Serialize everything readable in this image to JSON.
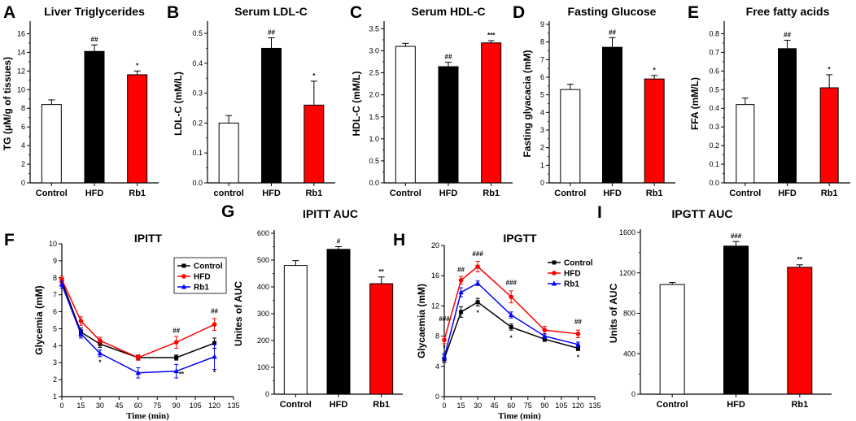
{
  "chart_data": [
    {
      "panel": "A",
      "type": "bar",
      "title": "Liver Triglycerides",
      "ylabel": "TG (μM/g of tissues)",
      "xlabel": "",
      "ylim": [
        0,
        17
      ],
      "yticks": [
        0,
        2,
        4,
        6,
        8,
        10,
        12,
        14,
        16
      ],
      "categories": [
        "Control",
        "HFD",
        "Rb1"
      ],
      "values": [
        8.4,
        14.1,
        11.6
      ],
      "errors": [
        0.5,
        0.7,
        0.4
      ],
      "colors": [
        "#ffffff",
        "#000000",
        "#ff0000"
      ],
      "annotations": [
        "",
        "##",
        "*"
      ]
    },
    {
      "panel": "B",
      "type": "bar",
      "title": "Serum LDL-C",
      "ylabel": "LDL-C (mM/L)",
      "xlabel": "",
      "ylim": [
        0,
        0.53
      ],
      "yticks": [
        0.0,
        0.1,
        0.2,
        0.3,
        0.4,
        0.5
      ],
      "categories": [
        "control",
        "HFD",
        "Rb1"
      ],
      "values": [
        0.2,
        0.45,
        0.26
      ],
      "errors": [
        0.025,
        0.035,
        0.08
      ],
      "colors": [
        "#ffffff",
        "#000000",
        "#ff0000"
      ],
      "annotations": [
        "",
        "##",
        "*"
      ]
    },
    {
      "panel": "C",
      "type": "bar",
      "title": "Serum HDL-C",
      "ylabel": "HDL-C (mM/L)",
      "xlabel": "",
      "ylim": [
        0,
        3.6
      ],
      "yticks": [
        0.0,
        0.5,
        1.0,
        1.5,
        2.0,
        2.5,
        3.0,
        3.5
      ],
      "categories": [
        "Control",
        "HFD",
        "Rb1"
      ],
      "values": [
        3.1,
        2.64,
        3.18
      ],
      "errors": [
        0.07,
        0.1,
        0.05
      ],
      "colors": [
        "#ffffff",
        "#000000",
        "#ff0000"
      ],
      "annotations": [
        "",
        "##",
        "***"
      ]
    },
    {
      "panel": "D",
      "type": "bar",
      "title": "Fasting Glucose",
      "ylabel": "Fasting glyacacia (mM)",
      "xlabel": "",
      "ylim": [
        0,
        9
      ],
      "yticks": [
        0,
        1,
        2,
        3,
        4,
        5,
        6,
        7,
        8,
        9
      ],
      "categories": [
        "Control",
        "HFD",
        "Rb1"
      ],
      "values": [
        5.3,
        7.7,
        5.9
      ],
      "errors": [
        0.3,
        0.55,
        0.2
      ],
      "colors": [
        "#ffffff",
        "#000000",
        "#ff0000"
      ],
      "annotations": [
        "",
        "##",
        "*"
      ]
    },
    {
      "panel": "E",
      "type": "bar",
      "title": "Free fatty acids",
      "ylabel": "FFA (mM/L)",
      "xlabel": "",
      "ylim": [
        0,
        0.85
      ],
      "yticks": [
        0.0,
        0.1,
        0.2,
        0.3,
        0.4,
        0.5,
        0.6,
        0.7,
        0.8
      ],
      "categories": [
        "Control",
        "HFD",
        "Rb1"
      ],
      "values": [
        0.42,
        0.72,
        0.51
      ],
      "errors": [
        0.035,
        0.045,
        0.07
      ],
      "colors": [
        "#ffffff",
        "#000000",
        "#ff0000"
      ],
      "annotations": [
        "",
        "##",
        "*"
      ]
    },
    {
      "panel": "F",
      "type": "line",
      "title": "IPITT",
      "xlabel": "Time (min)",
      "ylabel": "Glycemia (mM)",
      "xlim": [
        0,
        135
      ],
      "ylim": [
        1,
        10
      ],
      "xticks": [
        0,
        15,
        30,
        45,
        60,
        75,
        90,
        105,
        120,
        135
      ],
      "yticks": [
        1,
        2,
        3,
        4,
        5,
        6,
        7,
        8,
        9,
        10
      ],
      "x": [
        0,
        15,
        30,
        60,
        90,
        120
      ],
      "series": [
        {
          "name": "Control",
          "color": "#000000",
          "marker": "square",
          "values": [
            7.8,
            4.8,
            4.1,
            3.3,
            3.3,
            4.15
          ],
          "errors": [
            0.2,
            0.25,
            0.2,
            0.15,
            0.15,
            0.3
          ]
        },
        {
          "name": "HFD",
          "color": "#ff0000",
          "marker": "circle",
          "values": [
            7.9,
            5.45,
            4.3,
            3.3,
            4.2,
            5.25
          ],
          "errors": [
            0.2,
            0.25,
            0.2,
            0.15,
            0.35,
            0.35
          ]
        },
        {
          "name": "Rb1",
          "color": "#0000ff",
          "marker": "triangle",
          "values": [
            7.6,
            4.7,
            3.55,
            2.4,
            2.5,
            3.35
          ],
          "errors": [
            0.2,
            0.25,
            0.2,
            0.3,
            0.4,
            0.75
          ]
        }
      ],
      "annotations": [
        {
          "x": 30,
          "y": 2.9,
          "text": "*"
        },
        {
          "x": 90,
          "y": 4.75,
          "text": "##"
        },
        {
          "x": 94,
          "y": 2.2,
          "text": "**"
        },
        {
          "x": 120,
          "y": 5.9,
          "text": "##"
        },
        {
          "x": 120,
          "y": 2.3,
          "text": "*"
        }
      ]
    },
    {
      "panel": "G",
      "type": "bar",
      "title": "IPITT AUC",
      "ylabel": "Unites of AUC",
      "xlabel": "",
      "ylim": [
        0,
        600
      ],
      "yticks": [
        0,
        100,
        200,
        300,
        400,
        500,
        600
      ],
      "categories": [
        "Control",
        "HFD",
        "Rb1"
      ],
      "values": [
        480,
        540,
        412
      ],
      "errors": [
        18,
        10,
        25
      ],
      "colors": [
        "#ffffff",
        "#000000",
        "#ff0000"
      ],
      "annotations": [
        "",
        "#",
        "**"
      ]
    },
    {
      "panel": "H",
      "type": "line",
      "title": "IPGTT",
      "xlabel": "Time (min)",
      "ylabel": "Glycaemia (mM)",
      "xlim": [
        0,
        135
      ],
      "ylim": [
        0,
        20
      ],
      "xticks": [
        0,
        15,
        30,
        45,
        60,
        75,
        90,
        105,
        120,
        135
      ],
      "yticks": [
        0,
        4,
        8,
        12,
        16,
        20
      ],
      "x": [
        0,
        15,
        30,
        60,
        90,
        120
      ],
      "series": [
        {
          "name": "Control",
          "color": "#000000",
          "marker": "square",
          "values": [
            5.0,
            11.2,
            12.5,
            9.2,
            7.6,
            6.4
          ],
          "errors": [
            0.5,
            0.7,
            0.5,
            0.4,
            0.3,
            0.3
          ]
        },
        {
          "name": "HFD",
          "color": "#ff0000",
          "marker": "circle",
          "values": [
            7.5,
            15.4,
            17.2,
            13.2,
            8.8,
            8.3
          ],
          "errors": [
            0.5,
            0.5,
            0.7,
            0.8,
            0.5,
            0.5
          ]
        },
        {
          "name": "Rb1",
          "color": "#0000ff",
          "marker": "triangle",
          "values": [
            5.2,
            13.8,
            15.0,
            10.8,
            8.0,
            6.9
          ],
          "errors": [
            0.5,
            0.6,
            0.3,
            0.4,
            0.3,
            0.3
          ]
        }
      ],
      "annotations": [
        {
          "x": 0,
          "y": 10.0,
          "text": "###"
        },
        {
          "x": 0,
          "y": 6.2,
          "text": "*"
        },
        {
          "x": 15,
          "y": 16.5,
          "text": "##"
        },
        {
          "x": 30,
          "y": 18.6,
          "text": "###"
        },
        {
          "x": 30,
          "y": 10.8,
          "text": "*"
        },
        {
          "x": 60,
          "y": 14.8,
          "text": "###"
        },
        {
          "x": 60,
          "y": 7.5,
          "text": "*"
        },
        {
          "x": 120,
          "y": 9.6,
          "text": "##"
        },
        {
          "x": 120,
          "y": 4.9,
          "text": "*"
        }
      ]
    },
    {
      "panel": "I",
      "type": "bar",
      "title": "IPGTT AUC",
      "ylabel": "Units of AUC",
      "xlabel": "",
      "ylim": [
        0,
        1600
      ],
      "yticks": [
        0,
        400,
        800,
        1200,
        1600
      ],
      "categories": [
        "Control",
        "HFD",
        "Rb1"
      ],
      "values": [
        1085,
        1465,
        1255
      ],
      "errors": [
        20,
        45,
        25
      ],
      "colors": [
        "#ffffff",
        "#000000",
        "#ff0000"
      ],
      "annotations": [
        "",
        "###",
        "**"
      ]
    }
  ]
}
